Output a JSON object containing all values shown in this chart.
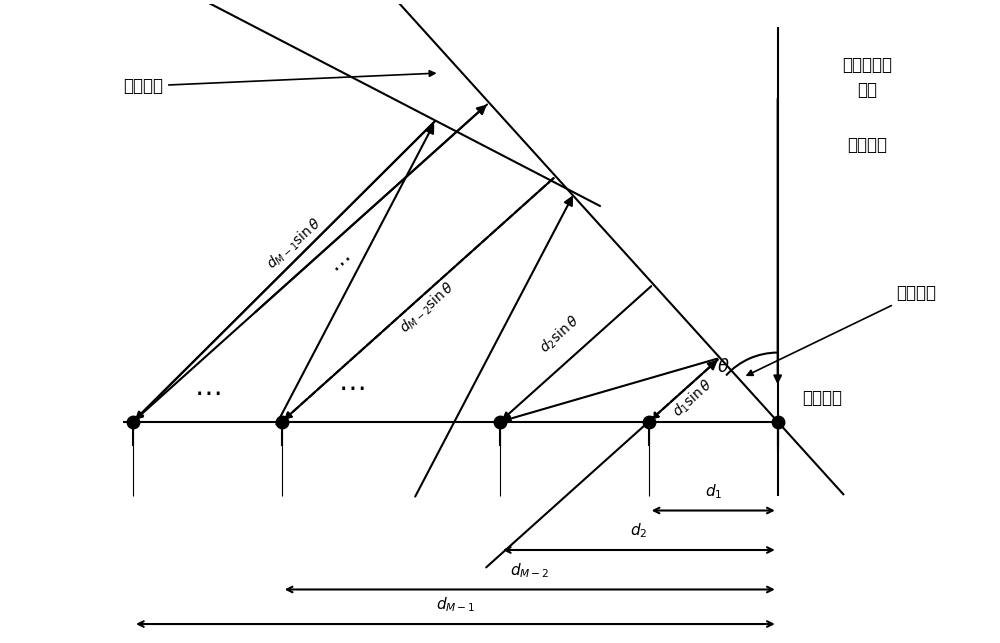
{
  "bg_color": "#ffffff",
  "line_color": "#000000",
  "fig_width": 10.0,
  "fig_height": 6.43,
  "dpi": 100,
  "labels": {
    "planar_wave": "平面波前",
    "signal_source": "窄带远场信\n号源",
    "array_normal": "阵列法线",
    "incidence_angle": "入射角度",
    "ref_element": "参考阵元",
    "d1_sin": "$d_1\\sin\\theta$",
    "d2_sin": "$d_2\\sin\\theta$",
    "dM2_sin": "$d_{M-2}\\sin\\theta$",
    "dM1_sin": "$d_{M-1}\\sin\\theta$",
    "d1": "$d_1$",
    "d2": "$d_2$",
    "dM2": "$d_{M-2}$",
    "dM1": "$d_{M-1}$",
    "theta": "$\\theta$",
    "dots_mid": "$\\cdots$"
  }
}
